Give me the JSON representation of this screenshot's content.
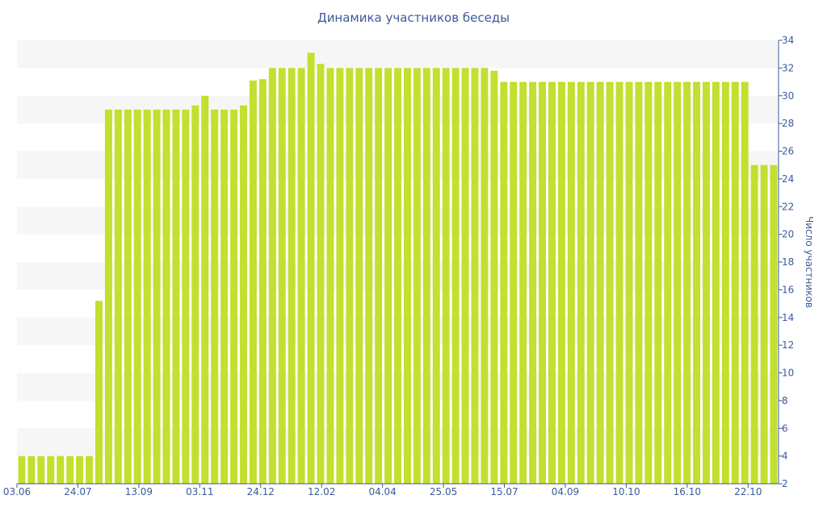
{
  "chart_data": {
    "type": "bar",
    "title": "Динамика участников беседы",
    "xlabel": "",
    "ylabel": "Число участников",
    "ylim": [
      2,
      34
    ],
    "y_ticks": [
      2,
      4,
      6,
      8,
      10,
      12,
      14,
      16,
      18,
      20,
      22,
      24,
      26,
      28,
      30,
      32,
      34
    ],
    "y_axis_side": "right",
    "grid": "alternating horizontal bands",
    "bar_color": "#c3df2f",
    "x_tick_labels": [
      "03.06",
      "24.07",
      "13.09",
      "03.11",
      "24.12",
      "12.02",
      "04.04",
      "25.05",
      "15.07",
      "04.09",
      "10.10",
      "16.10",
      "22.10"
    ],
    "values": [
      4,
      4,
      4,
      4,
      4,
      4,
      4,
      4,
      15.2,
      29,
      29,
      29,
      29,
      29,
      29,
      29,
      29,
      29,
      29.3,
      30,
      29,
      29,
      29,
      29.3,
      31.1,
      31.2,
      32,
      32,
      32,
      32,
      33.1,
      32.3,
      32,
      32,
      32,
      32,
      32,
      32,
      32,
      32,
      32,
      32,
      32,
      32,
      32,
      32,
      32,
      32,
      32,
      31.8,
      31,
      31,
      31,
      31,
      31,
      31,
      31,
      31,
      31,
      31,
      31,
      31,
      31,
      31,
      31,
      31,
      31,
      31,
      31,
      31,
      31,
      31,
      31,
      31,
      31,
      31,
      25,
      25,
      25
    ]
  }
}
